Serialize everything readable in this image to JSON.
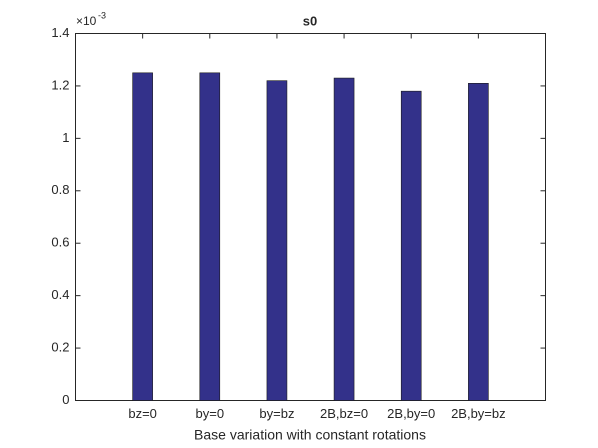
{
  "chart_data": {
    "type": "bar",
    "title": "s0",
    "x_label": "Base variation with constant rotations",
    "y_multiplier": {
      "base": "×10",
      "exponent": "-3"
    },
    "categories": [
      "bz=0",
      "by=0",
      "by=bz",
      "2B,bz=0",
      "2B,by=0",
      "2B,by=bz"
    ],
    "values": [
      1.25,
      1.25,
      1.22,
      1.23,
      1.18,
      1.21
    ],
    "color": "#33318a",
    "ylim": [
      0,
      1.4
    ],
    "yticks": [
      0,
      0.2,
      0.4,
      0.6,
      0.8,
      1,
      1.2,
      1.4
    ],
    "grid": false
  }
}
